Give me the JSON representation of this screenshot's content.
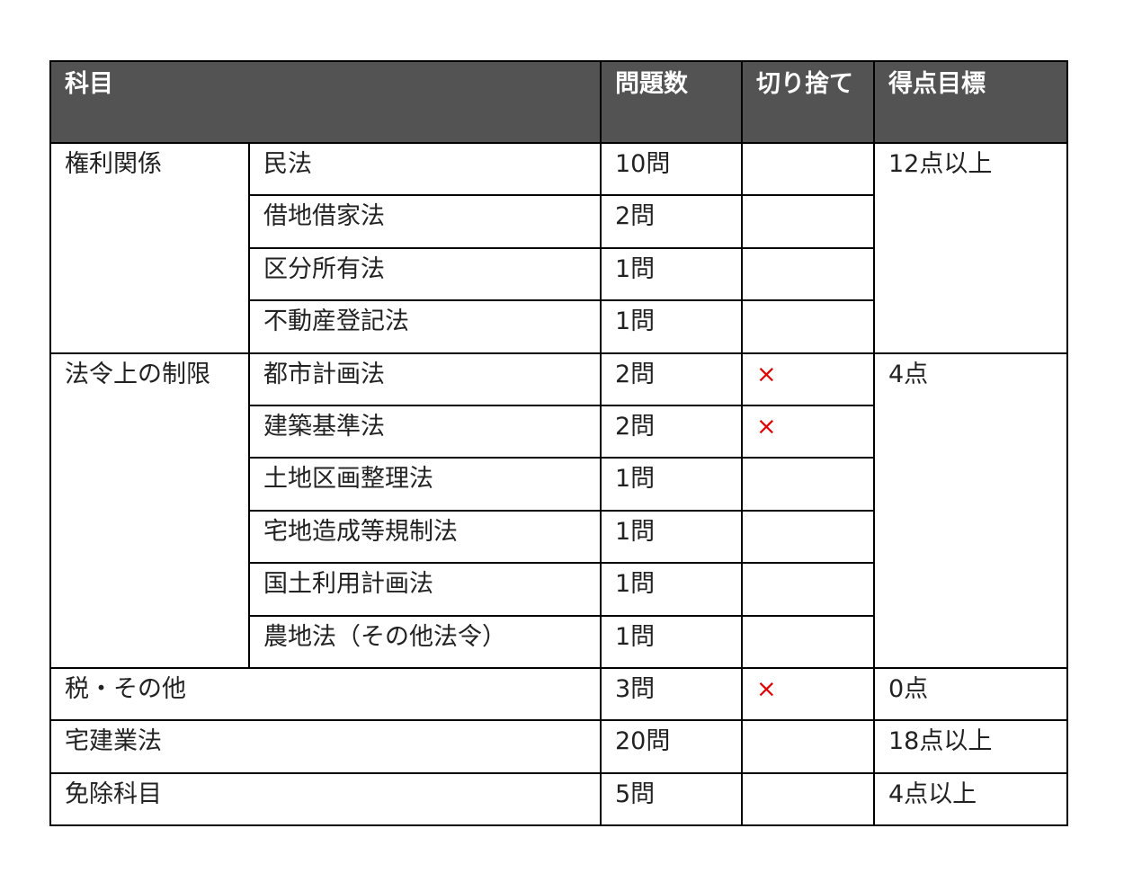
{
  "header": [
    "科目",
    "問題数",
    "切り捨て",
    "得点目標"
  ],
  "groups": [
    {
      "category": "権利関係",
      "target": "12点以上",
      "rows": [
        {
          "subject": "民法",
          "count": "10問",
          "cut": ""
        },
        {
          "subject": "借地借家法",
          "count": "2問",
          "cut": ""
        },
        {
          "subject": "区分所有法",
          "count": "1問",
          "cut": ""
        },
        {
          "subject": "不動産登記法",
          "count": "1問",
          "cut": ""
        }
      ]
    },
    {
      "category": "法令上の制限",
      "target": "4点",
      "rows": [
        {
          "subject": "都市計画法",
          "count": "2問",
          "cut": "×"
        },
        {
          "subject": "建築基準法",
          "count": "2問",
          "cut": "×"
        },
        {
          "subject": "土地区画整理法",
          "count": "1問",
          "cut": ""
        },
        {
          "subject": "宅地造成等規制法",
          "count": "1問",
          "cut": ""
        },
        {
          "subject": "国土利用計画法",
          "count": "1問",
          "cut": ""
        },
        {
          "subject": "農地法（その他法令）",
          "count": "1問",
          "cut": ""
        }
      ]
    },
    {
      "category": "税・その他",
      "target": "0点",
      "single": true,
      "rows": [
        {
          "subject": "",
          "count": "3問",
          "cut": "×"
        }
      ]
    },
    {
      "category": "宅建業法",
      "target": "18点以上",
      "single": true,
      "rows": [
        {
          "subject": "",
          "count": "20問",
          "cut": ""
        }
      ]
    },
    {
      "category": "免除科目",
      "target": "4点以上",
      "single": true,
      "rows": [
        {
          "subject": "",
          "count": "5問",
          "cut": ""
        }
      ]
    }
  ],
  "colors": {
    "header_bg": "#535353",
    "cut_mark": "#e00000"
  }
}
